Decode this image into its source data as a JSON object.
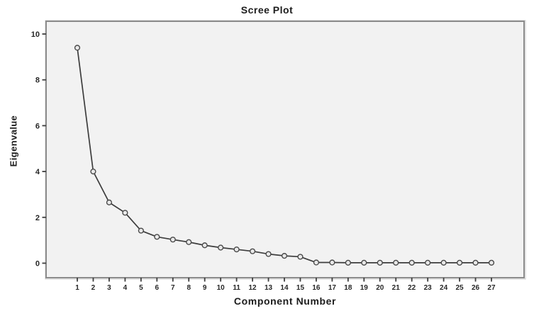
{
  "chart_data": {
    "type": "line",
    "title": "Scree Plot",
    "xlabel": "Component Number",
    "ylabel": "Eigenvalue",
    "x": [
      1,
      2,
      3,
      4,
      5,
      6,
      7,
      8,
      9,
      10,
      11,
      12,
      13,
      14,
      15,
      16,
      17,
      18,
      19,
      20,
      21,
      22,
      23,
      24,
      25,
      26,
      27
    ],
    "series": [
      {
        "name": "Eigenvalue",
        "values": [
          9.4,
          4.0,
          2.65,
          2.2,
          1.42,
          1.15,
          1.03,
          0.92,
          0.78,
          0.68,
          0.6,
          0.52,
          0.4,
          0.32,
          0.28,
          0.03,
          0.03,
          0.02,
          0.02,
          0.02,
          0.02,
          0.02,
          0.02,
          0.02,
          0.02,
          0.02,
          0.02
        ]
      }
    ],
    "y_ticks": [
      0,
      2,
      4,
      6,
      8,
      10
    ],
    "ylim": [
      0,
      10
    ],
    "xlim": [
      1,
      27
    ],
    "grid": false,
    "legend": "none",
    "marker": "open-circle",
    "colors": {
      "background": "#ffffff",
      "plot_background": "#f2f2f2",
      "frame": "#8c8c8c",
      "tick": "#3f3f3f",
      "line": "#3d3d3d",
      "marker_fill": "#e9e9e9",
      "marker_stroke": "#4a4a4a",
      "text": "#1c1c1c"
    }
  }
}
